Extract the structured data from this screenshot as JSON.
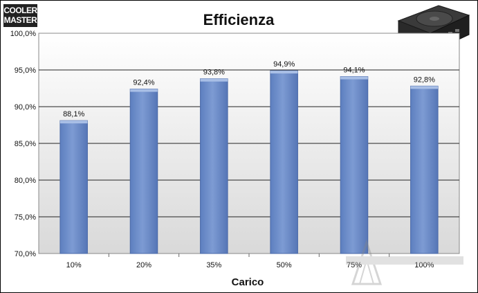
{
  "logo": {
    "line1": "COOLER",
    "line2": "MASTER"
  },
  "chart_data": {
    "type": "bar",
    "title": "Efficienza",
    "xlabel": "Carico",
    "ylabel": "",
    "categories": [
      "10%",
      "20%",
      "35%",
      "50%",
      "75%",
      "100%"
    ],
    "values": [
      88.1,
      92.4,
      93.8,
      94.9,
      94.1,
      92.8
    ],
    "data_labels": [
      "88,1%",
      "92,4%",
      "93,8%",
      "94,9%",
      "94,1%",
      "92,8%"
    ],
    "ylim": [
      70,
      100
    ],
    "yticks": [
      70,
      75,
      80,
      85,
      90,
      95,
      100
    ],
    "ytick_labels": [
      "70,0%",
      "75,0%",
      "80,0%",
      "85,0%",
      "90,0%",
      "95,0%",
      "100,0%"
    ],
    "grid": true,
    "bar_color": "#6f8fc9"
  }
}
